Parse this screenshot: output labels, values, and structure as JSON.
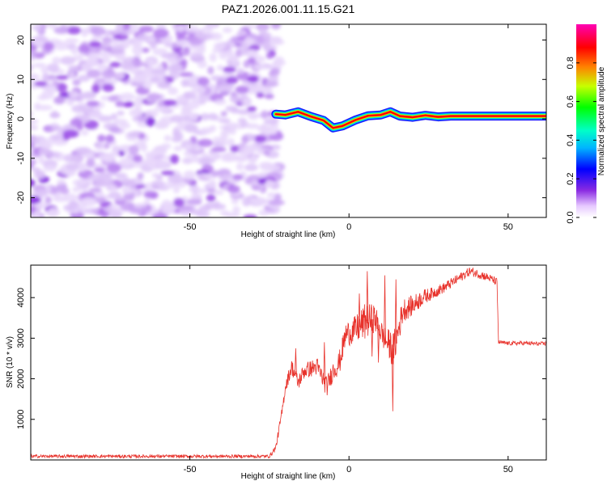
{
  "title": "PAZ1.2026.001.11.15.G21",
  "chart_data": [
    {
      "type": "heatmap",
      "title": "PAZ1.2026.001.11.15.G21",
      "xlabel": "Height of straight line (km)",
      "ylabel": "Frequency (Hz)",
      "xlim": [
        -100,
        62
      ],
      "ylim": [
        -25,
        24
      ],
      "xticks": [
        -50,
        0,
        50
      ],
      "yticks": [
        -20,
        -10,
        0,
        10,
        20
      ],
      "colorbar": {
        "label": "Normalized spectral amplitude",
        "range": [
          0,
          1
        ],
        "ticks": [
          0.0,
          0.2,
          0.4,
          0.6,
          0.8
        ],
        "colors": [
          "#ffffff",
          "#8a2be2",
          "#0000ff",
          "#00e5ff",
          "#00ff00",
          "#ffff00",
          "#ff8000",
          "#ff0000",
          "#ff00c8"
        ]
      },
      "noise_region": {
        "x_range": [
          -100,
          -23
        ],
        "freq_range": [
          -25,
          24
        ],
        "amplitude": "low (~0.1-0.3)"
      },
      "signal_ridge": {
        "x": [
          -23,
          -20,
          -16,
          -12,
          -8,
          -5,
          -2,
          2,
          6,
          10,
          13,
          16,
          20,
          24,
          28,
          32,
          38,
          45,
          55,
          62
        ],
        "freq_hz": [
          1.2,
          1.0,
          1.8,
          0.6,
          -0.4,
          -2.3,
          -1.8,
          -0.3,
          0.8,
          1.0,
          1.8,
          0.7,
          0.4,
          0.9,
          0.5,
          0.7,
          0.7,
          0.7,
          0.7,
          0.7
        ],
        "amplitude": "high (~0.9-1.0)"
      }
    },
    {
      "type": "line",
      "xlabel": "Height of straight line (km)",
      "ylabel": "SNR (10 * v/v)",
      "xlim": [
        -100,
        62
      ],
      "ylim": [
        0,
        4800
      ],
      "xticks": [
        -50,
        0,
        50
      ],
      "yticks": [
        1000,
        2000,
        3000,
        4000
      ],
      "series": [
        {
          "name": "SNR",
          "color": "#e8322b",
          "x": [
            -100,
            -60,
            -25,
            -23,
            -21,
            -20,
            -18,
            -16,
            -14,
            -10,
            -7,
            -5,
            -3,
            -1,
            2,
            5,
            8,
            11,
            14,
            17,
            20,
            23,
            26,
            30,
            34,
            38,
            42,
            45,
            46.5,
            47,
            50,
            55,
            60,
            62
          ],
          "y": [
            90,
            90,
            90,
            300,
            1200,
            1800,
            2300,
            1900,
            2200,
            2300,
            1800,
            2200,
            2400,
            3100,
            3200,
            3400,
            3500,
            3000,
            2700,
            3700,
            3800,
            4000,
            4100,
            4250,
            4450,
            4650,
            4550,
            4450,
            4380,
            2900,
            2870,
            2880,
            2860,
            2870
          ],
          "noise": [
            40,
            40,
            40,
            80,
            120,
            150,
            200,
            200,
            200,
            220,
            250,
            250,
            300,
            300,
            350,
            450,
            350,
            300,
            450,
            300,
            250,
            200,
            150,
            130,
            120,
            110,
            110,
            100,
            100,
            50,
            50,
            50,
            50,
            50
          ],
          "spikes": [
            {
              "x": 3,
              "y": 4100
            },
            {
              "x": 5.5,
              "y": 4650
            },
            {
              "x": 7,
              "y": 2550
            },
            {
              "x": 11,
              "y": 4550
            },
            {
              "x": 13.5,
              "y": 1200
            },
            {
              "x": 14.5,
              "y": 4450
            },
            {
              "x": 9,
              "y": 2400
            },
            {
              "x": -17,
              "y": 2750
            },
            {
              "x": -8,
              "y": 2900
            }
          ]
        }
      ]
    }
  ]
}
